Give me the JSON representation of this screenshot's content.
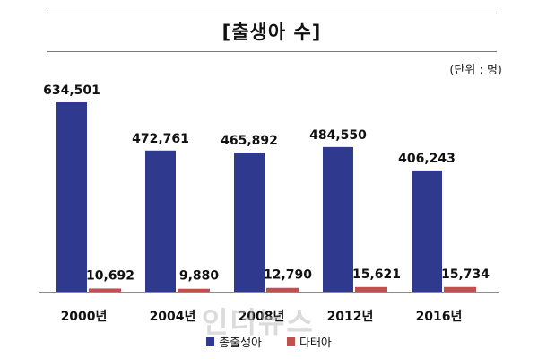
{
  "header": {
    "title": "[출생아 수]",
    "unit_note": "(단위 : 명)"
  },
  "watermark": "인더뉴스",
  "colors": {
    "total_births": "#2f3a8f",
    "multiple_births": "#c0504d",
    "baseline": "#8c8c8c"
  },
  "chart_data": {
    "type": "bar",
    "title": "[출생아 수]",
    "xlabel": "",
    "ylabel": "",
    "unit": "명",
    "categories": [
      "2000년",
      "2004년",
      "2008년",
      "2012년",
      "2016년"
    ],
    "series": [
      {
        "name": "총출생아",
        "values": [
          634501,
          472761,
          465892,
          484550,
          406243
        ]
      },
      {
        "name": "다태아",
        "values": [
          10692,
          9880,
          12790,
          15621,
          15734
        ]
      }
    ],
    "value_labels": [
      [
        "634,501",
        "472,761",
        "465,892",
        "484,550",
        "406,243"
      ],
      [
        "10,692",
        "9,880",
        "12,790",
        "15,621",
        "15,734"
      ]
    ],
    "ylim": [
      0,
      634501
    ],
    "grid": false,
    "legend_position": "bottom"
  }
}
